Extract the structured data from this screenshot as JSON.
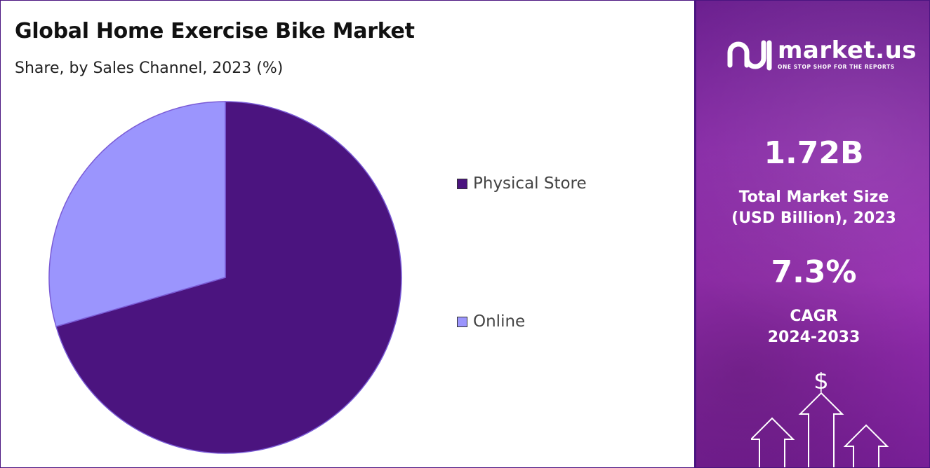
{
  "title": "Global Home Exercise Bike Market",
  "subtitle": "Share, by Sales Channel, 2023 (%)",
  "chart_data": {
    "type": "pie",
    "categories": [
      "Physical Store",
      "Online"
    ],
    "values": [
      70.5,
      29.5
    ],
    "colors": [
      "#4b147f",
      "#9b95fd"
    ],
    "start_angle_deg": 0,
    "direction": "clockwise",
    "legend": {
      "position": "right"
    }
  },
  "legend": [
    {
      "label": "Physical Store",
      "color": "#4b147f"
    },
    {
      "label": "Online",
      "color": "#9b95fd"
    }
  ],
  "brand": {
    "name": "market.us",
    "tagline": "ONE STOP SHOP FOR THE REPORTS"
  },
  "stats": {
    "market_size_value": "1.72B",
    "market_size_label_line1": "Total Market Size",
    "market_size_label_line2": "(USD Billion), 2023",
    "cagr_value": "7.3%",
    "cagr_label_line1": "CAGR",
    "cagr_label_line2": "2024-2033"
  },
  "decoration": {
    "dollar_symbol": "$"
  }
}
